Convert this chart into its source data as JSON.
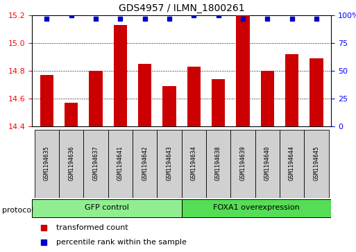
{
  "title": "GDS4957 / ILMN_1800261",
  "samples": [
    "GSM1194635",
    "GSM1194636",
    "GSM1194637",
    "GSM1194641",
    "GSM1194642",
    "GSM1194643",
    "GSM1194634",
    "GSM1194638",
    "GSM1194639",
    "GSM1194640",
    "GSM1194644",
    "GSM1194645"
  ],
  "transformed_counts": [
    14.77,
    14.57,
    14.8,
    15.13,
    14.85,
    14.69,
    14.83,
    14.74,
    15.21,
    14.8,
    14.92,
    14.89
  ],
  "percentile_ranks": [
    97,
    100,
    97,
    97,
    97,
    97,
    100,
    100,
    97,
    97,
    97,
    97
  ],
  "groups": [
    {
      "label": "GFP control",
      "start": 0,
      "end": 6,
      "color": "#90EE90"
    },
    {
      "label": "FOXA1 overexpression",
      "start": 6,
      "end": 12,
      "color": "#55DD55"
    }
  ],
  "ylim_left": [
    14.4,
    15.2
  ],
  "ylim_right": [
    0,
    100
  ],
  "yticks_left": [
    14.4,
    14.6,
    14.8,
    15.0,
    15.2
  ],
  "yticks_right": [
    0,
    25,
    50,
    75,
    100
  ],
  "bar_color": "#CC0000",
  "dot_color": "#0000CC",
  "plot_bg": "#ffffff",
  "sample_box_color": "#d0d0d0",
  "legend_items": [
    {
      "color": "#CC0000",
      "label": "transformed count"
    },
    {
      "color": "#0000CC",
      "label": "percentile rank within the sample"
    }
  ]
}
